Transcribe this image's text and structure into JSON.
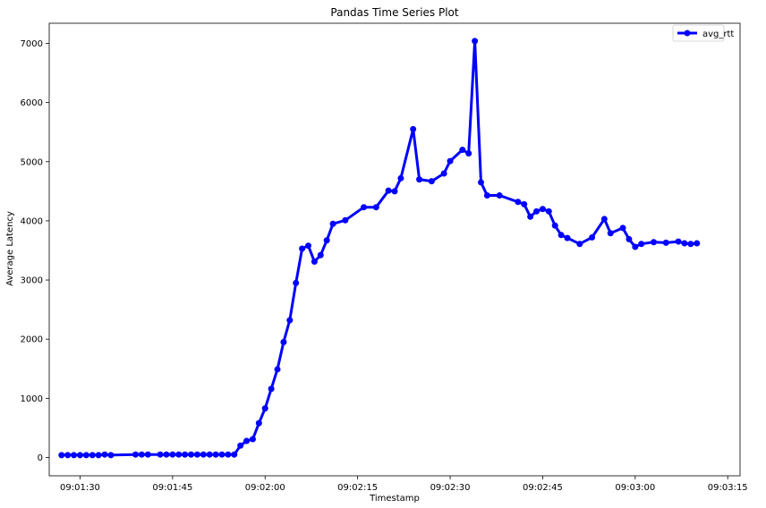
{
  "chart_data": {
    "type": "line",
    "title": "Pandas Time Series Plot",
    "xlabel": "Timestamp",
    "ylabel": "Average Latency",
    "x_tick_labels": [
      "09:01:30",
      "09:01:45",
      "09:02:00",
      "09:02:15",
      "09:02:30",
      "09:02:45",
      "09:03:00",
      "09:03:15"
    ],
    "x_tick_values": [
      "09:01:30",
      "09:01:45",
      "09:02:00",
      "09:02:15",
      "09:02:30",
      "09:02:45",
      "09:03:00",
      "09:03:15"
    ],
    "y_tick_labels": [
      "0",
      "1000",
      "2000",
      "3000",
      "4000",
      "5000",
      "6000",
      "7000"
    ],
    "y_tick_values": [
      0,
      1000,
      2000,
      3000,
      4000,
      5000,
      6000,
      7000
    ],
    "xlim": [
      "09:01:25",
      "09:03:17"
    ],
    "ylim": [
      -310,
      7340
    ],
    "grid": false,
    "legend": {
      "position": "top-right"
    },
    "colors": {
      "line": "#0000ff",
      "axes": "#000000",
      "background": "#ffffff"
    },
    "series": [
      {
        "name": "avg_rtt",
        "x": [
          "09:01:27",
          "09:01:28",
          "09:01:29",
          "09:01:30",
          "09:01:31",
          "09:01:32",
          "09:01:33",
          "09:01:34",
          "09:01:35",
          "09:01:39",
          "09:01:40",
          "09:01:41",
          "09:01:43",
          "09:01:44",
          "09:01:45",
          "09:01:46",
          "09:01:47",
          "09:01:48",
          "09:01:49",
          "09:01:50",
          "09:01:51",
          "09:01:52",
          "09:01:53",
          "09:01:54",
          "09:01:55",
          "09:01:56",
          "09:01:57",
          "09:01:58",
          "09:01:59",
          "09:02:00",
          "09:02:01",
          "09:02:02",
          "09:02:03",
          "09:02:04",
          "09:02:05",
          "09:02:06",
          "09:02:07",
          "09:02:08",
          "09:02:09",
          "09:02:10",
          "09:02:11",
          "09:02:13",
          "09:02:16",
          "09:02:18",
          "09:02:20",
          "09:02:21",
          "09:02:22",
          "09:02:24",
          "09:02:25",
          "09:02:27",
          "09:02:29",
          "09:02:30",
          "09:02:32",
          "09:02:33",
          "09:02:34",
          "09:02:35",
          "09:02:36",
          "09:02:38",
          "09:02:41",
          "09:02:42",
          "09:02:43",
          "09:02:44",
          "09:02:45",
          "09:02:46",
          "09:02:47",
          "09:02:48",
          "09:02:49",
          "09:02:51",
          "09:02:53",
          "09:02:55",
          "09:02:56",
          "09:02:58",
          "09:02:59",
          "09:03:00",
          "09:03:01",
          "09:03:03",
          "09:03:05",
          "09:03:07",
          "09:03:08",
          "09:03:09",
          "09:03:10"
        ],
        "values": [
          40,
          40,
          40,
          40,
          40,
          40,
          40,
          50,
          40,
          50,
          50,
          50,
          50,
          50,
          50,
          50,
          50,
          50,
          50,
          50,
          50,
          50,
          50,
          50,
          50,
          200,
          280,
          310,
          580,
          830,
          1160,
          1490,
          1950,
          2320,
          2950,
          3530,
          3580,
          3310,
          3420,
          3670,
          3950,
          4010,
          4230,
          4230,
          4510,
          4500,
          4720,
          5550,
          4700,
          4670,
          4800,
          5010,
          5200,
          5140,
          7040,
          4650,
          4430,
          4430,
          4320,
          4280,
          4070,
          4160,
          4200,
          4160,
          3920,
          3760,
          3710,
          3610,
          3720,
          4030,
          3790,
          3880,
          3690,
          3560,
          3610,
          3640,
          3630,
          3650,
          3620,
          3610,
          3620
        ]
      }
    ]
  }
}
